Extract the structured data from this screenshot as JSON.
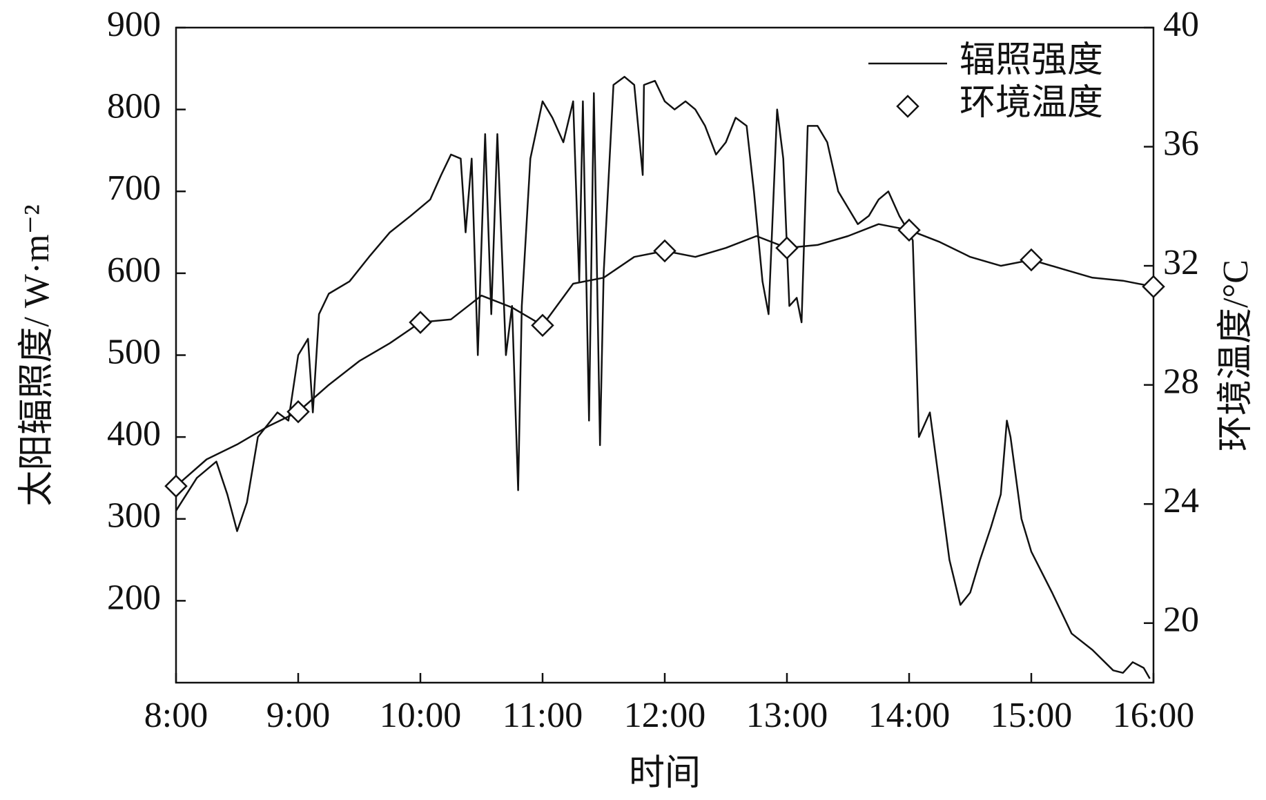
{
  "chart_data": {
    "type": "line",
    "xlabel": "时间",
    "ylabel": "太阳辐照度/ W·m⁻²",
    "y2label": "环境温度/°C",
    "xlim": [
      8,
      16
    ],
    "xticks": [
      {
        "value": 8,
        "label": "8:00"
      },
      {
        "value": 9,
        "label": "9:00"
      },
      {
        "value": 10,
        "label": "10:00"
      },
      {
        "value": 11,
        "label": "11:00"
      },
      {
        "value": 12,
        "label": "12:00"
      },
      {
        "value": 13,
        "label": "13:00"
      },
      {
        "value": 14,
        "label": "14:00"
      },
      {
        "value": 15,
        "label": "15:00"
      },
      {
        "value": 16,
        "label": "16:00"
      }
    ],
    "ylim": [
      100,
      900
    ],
    "yticks": [
      200,
      300,
      400,
      500,
      600,
      700,
      800,
      900
    ],
    "y2lim": [
      18,
      40
    ],
    "y2ticks": [
      20,
      24,
      28,
      32,
      36,
      40
    ],
    "legend": "upper right",
    "grid": false,
    "series": [
      {
        "name": "辐照强度",
        "color": "#111111",
        "marker": "none",
        "x": [
          8.0,
          8.17,
          8.33,
          8.42,
          8.5,
          8.58,
          8.67,
          8.83,
          8.92,
          9.0,
          9.08,
          9.12,
          9.17,
          9.25,
          9.42,
          9.58,
          9.75,
          9.92,
          10.08,
          10.17,
          10.25,
          10.33,
          10.37,
          10.42,
          10.47,
          10.53,
          10.58,
          10.63,
          10.7,
          10.75,
          10.8,
          10.83,
          10.9,
          11.0,
          11.08,
          11.17,
          11.25,
          11.3,
          11.33,
          11.38,
          11.42,
          11.47,
          11.5,
          11.58,
          11.67,
          11.75,
          11.82,
          11.83,
          11.92,
          12.0,
          12.08,
          12.17,
          12.25,
          12.33,
          12.42,
          12.5,
          12.58,
          12.67,
          12.73,
          12.8,
          12.85,
          12.92,
          12.97,
          13.02,
          13.08,
          13.12,
          13.17,
          13.25,
          13.33,
          13.42,
          13.5,
          13.58,
          13.67,
          13.75,
          13.83,
          13.92,
          14.0,
          14.03,
          14.08,
          14.17,
          14.25,
          14.33,
          14.42,
          14.5,
          14.58,
          14.67,
          14.75,
          14.8,
          14.83,
          14.92,
          15.0,
          15.17,
          15.33,
          15.5,
          15.67,
          15.75,
          15.83,
          15.92,
          15.97
        ],
        "values": [
          310,
          350,
          370,
          330,
          285,
          320,
          400,
          430,
          420,
          500,
          520,
          430,
          550,
          575,
          590,
          620,
          650,
          670,
          690,
          720,
          745,
          740,
          650,
          740,
          500,
          770,
          550,
          770,
          500,
          560,
          335,
          560,
          740,
          810,
          790,
          760,
          810,
          590,
          810,
          420,
          820,
          390,
          600,
          830,
          840,
          830,
          720,
          830,
          835,
          810,
          800,
          810,
          800,
          780,
          745,
          760,
          790,
          780,
          700,
          590,
          550,
          800,
          740,
          560,
          570,
          540,
          780,
          780,
          760,
          700,
          680,
          660,
          670,
          690,
          700,
          670,
          650,
          640,
          400,
          430,
          340,
          250,
          195,
          210,
          250,
          290,
          330,
          420,
          400,
          300,
          260,
          210,
          160,
          140,
          115,
          112,
          125,
          118,
          105
        ]
      },
      {
        "name": "环境温度",
        "color": "#111111",
        "marker": "diamond",
        "axis": "y2",
        "x": [
          8,
          8.25,
          8.5,
          8.75,
          9,
          9.25,
          9.5,
          9.75,
          10,
          10.25,
          10.5,
          10.75,
          11,
          11.25,
          11.5,
          11.75,
          12,
          12.25,
          12.5,
          12.75,
          13,
          13.25,
          13.5,
          13.75,
          14,
          14.25,
          14.5,
          14.75,
          15,
          15.25,
          15.5,
          15.75,
          16
        ],
        "values": [
          24.6,
          25.5,
          26.0,
          26.6,
          27.1,
          28.0,
          28.8,
          29.4,
          30.1,
          30.2,
          31.0,
          30.6,
          30.0,
          31.4,
          31.6,
          32.3,
          32.5,
          32.3,
          32.6,
          33.0,
          32.6,
          32.7,
          33.0,
          33.4,
          33.2,
          32.8,
          32.3,
          32.0,
          32.2,
          31.9,
          31.6,
          31.5,
          31.3
        ]
      }
    ]
  }
}
